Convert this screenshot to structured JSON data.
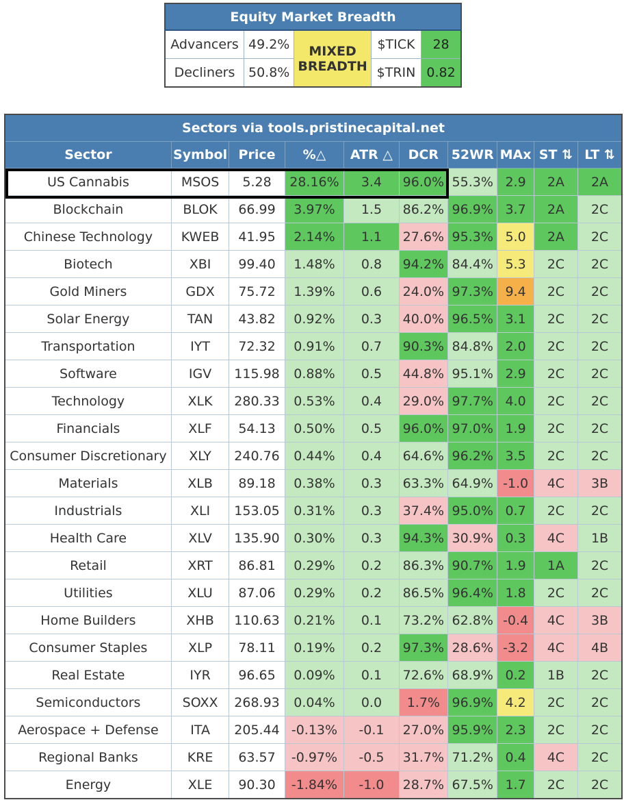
{
  "breadth": {
    "title": "Equity Market Breadth",
    "advancers_label": "Advancers",
    "advancers_value": "49.2%",
    "decliners_label": "Decliners",
    "decliners_value": "50.8%",
    "status_line1": "MIXED",
    "status_line2": "BREADTH",
    "tick_label": "$TICK",
    "tick_value": "28",
    "trin_label": "$TRIN",
    "trin_value": "0.82"
  },
  "sectors": {
    "title": "Sectors via tools.pristinecapital.net",
    "headers": [
      "Sector",
      "Symbol",
      "Price",
      "%△",
      "ATR △",
      "DCR",
      "52WR",
      "MAx",
      "ST ⇅",
      "LT ⇅"
    ],
    "rows": [
      [
        "US Cannabis",
        "MSOS",
        "5.28",
        "28.16%",
        "3.4",
        "96.0%",
        "55.3%",
        "2.9",
        "2A",
        "2A"
      ],
      [
        "Blockchain",
        "BLOK",
        "66.99",
        "3.97%",
        "1.5",
        "86.2%",
        "96.9%",
        "3.7",
        "2A",
        "2C"
      ],
      [
        "Chinese Technology",
        "KWEB",
        "41.95",
        "2.14%",
        "1.1",
        "27.6%",
        "95.3%",
        "5.0",
        "2A",
        "2C"
      ],
      [
        "Biotech",
        "XBI",
        "99.40",
        "1.48%",
        "0.8",
        "94.2%",
        "84.4%",
        "5.3",
        "2C",
        "2C"
      ],
      [
        "Gold Miners",
        "GDX",
        "75.72",
        "1.39%",
        "0.6",
        "24.0%",
        "97.3%",
        "9.4",
        "2C",
        "2C"
      ],
      [
        "Solar Energy",
        "TAN",
        "43.82",
        "0.92%",
        "0.3",
        "40.0%",
        "96.5%",
        "3.1",
        "2C",
        "2C"
      ],
      [
        "Transportation",
        "IYT",
        "72.32",
        "0.91%",
        "0.7",
        "90.3%",
        "84.8%",
        "2.0",
        "2C",
        "2C"
      ],
      [
        "Software",
        "IGV",
        "115.98",
        "0.88%",
        "0.5",
        "44.8%",
        "95.1%",
        "2.9",
        "2C",
        "2C"
      ],
      [
        "Technology",
        "XLK",
        "280.33",
        "0.53%",
        "0.4",
        "29.0%",
        "97.7%",
        "4.0",
        "2C",
        "2C"
      ],
      [
        "Financials",
        "XLF",
        "54.13",
        "0.50%",
        "0.5",
        "96.0%",
        "97.0%",
        "1.9",
        "2C",
        "2C"
      ],
      [
        "Consumer Discretionary",
        "XLY",
        "240.76",
        "0.44%",
        "0.4",
        "64.6%",
        "96.2%",
        "3.5",
        "2C",
        "2C"
      ],
      [
        "Materials",
        "XLB",
        "89.18",
        "0.38%",
        "0.3",
        "63.3%",
        "64.9%",
        "-1.0",
        "4C",
        "3B"
      ],
      [
        "Industrials",
        "XLI",
        "153.05",
        "0.31%",
        "0.3",
        "37.4%",
        "95.0%",
        "0.7",
        "2C",
        "2C"
      ],
      [
        "Health Care",
        "XLV",
        "135.90",
        "0.30%",
        "0.3",
        "94.3%",
        "30.9%",
        "0.3",
        "4C",
        "1B"
      ],
      [
        "Retail",
        "XRT",
        "86.81",
        "0.29%",
        "0.2",
        "86.3%",
        "90.7%",
        "1.9",
        "1A",
        "2C"
      ],
      [
        "Utilities",
        "XLU",
        "87.06",
        "0.29%",
        "0.2",
        "86.5%",
        "96.4%",
        "1.8",
        "2C",
        "2C"
      ],
      [
        "Home Builders",
        "XHB",
        "110.63",
        "0.21%",
        "0.1",
        "73.2%",
        "62.8%",
        "-0.4",
        "4C",
        "3B"
      ],
      [
        "Consumer Staples",
        "XLP",
        "78.11",
        "0.19%",
        "0.2",
        "97.3%",
        "28.6%",
        "-3.2",
        "4C",
        "4B"
      ],
      [
        "Real Estate",
        "IYR",
        "96.65",
        "0.09%",
        "0.1",
        "72.6%",
        "68.9%",
        "0.2",
        "1B",
        "2C"
      ],
      [
        "Semiconductors",
        "SOXX",
        "268.93",
        "0.04%",
        "0.0",
        "1.7%",
        "96.9%",
        "4.2",
        "2C",
        "2C"
      ],
      [
        "Aerospace + Defense",
        "ITA",
        "205.44",
        "-0.13%",
        "-0.1",
        "27.0%",
        "95.9%",
        "2.3",
        "2C",
        "2C"
      ],
      [
        "Regional Banks",
        "KRE",
        "63.57",
        "-0.97%",
        "-0.5",
        "31.7%",
        "71.2%",
        "0.4",
        "4C",
        "2C"
      ],
      [
        "Energy",
        "XLE",
        "90.30",
        "-1.84%",
        "-1.0",
        "28.7%",
        "67.5%",
        "1.7",
        "2C",
        "2C"
      ]
    ],
    "cell_colors": [
      [
        "w",
        "w",
        "w",
        "g2",
        "g2",
        "g2",
        "g1",
        "g2",
        "g2",
        "g2"
      ],
      [
        "w",
        "w",
        "w",
        "g2",
        "g1",
        "g1",
        "g2",
        "g2",
        "g2",
        "g1"
      ],
      [
        "w",
        "w",
        "w",
        "g2",
        "g2",
        "r1",
        "g2",
        "y1",
        "g2",
        "g1"
      ],
      [
        "w",
        "w",
        "w",
        "g1",
        "g1",
        "g2",
        "g1",
        "y1",
        "g1",
        "g1"
      ],
      [
        "w",
        "w",
        "w",
        "g1",
        "g1",
        "r1",
        "g2",
        "o1",
        "g1",
        "g1"
      ],
      [
        "w",
        "w",
        "w",
        "g1",
        "g1",
        "r1",
        "g2",
        "g2",
        "g1",
        "g1"
      ],
      [
        "w",
        "w",
        "w",
        "g1",
        "g1",
        "g2",
        "g1",
        "g2",
        "g1",
        "g1"
      ],
      [
        "w",
        "w",
        "w",
        "g1",
        "g1",
        "r1",
        "g1",
        "g2",
        "g1",
        "g1"
      ],
      [
        "w",
        "w",
        "w",
        "g1",
        "g1",
        "r1",
        "g2",
        "g2",
        "g1",
        "g1"
      ],
      [
        "w",
        "w",
        "w",
        "g1",
        "g1",
        "g2",
        "g2",
        "g2",
        "g1",
        "g1"
      ],
      [
        "w",
        "w",
        "w",
        "g1",
        "g1",
        "g1",
        "g2",
        "g2",
        "g1",
        "g1"
      ],
      [
        "w",
        "w",
        "w",
        "g1",
        "g1",
        "g1",
        "g1",
        "r2",
        "r1",
        "r1"
      ],
      [
        "w",
        "w",
        "w",
        "g1",
        "g1",
        "r1",
        "g2",
        "g2",
        "g1",
        "g1"
      ],
      [
        "w",
        "w",
        "w",
        "g1",
        "g1",
        "g2",
        "r1",
        "g2",
        "r1",
        "g1"
      ],
      [
        "w",
        "w",
        "w",
        "g1",
        "g1",
        "g1",
        "g2",
        "g2",
        "g2",
        "g1"
      ],
      [
        "w",
        "w",
        "w",
        "g1",
        "g1",
        "g1",
        "g2",
        "g2",
        "g1",
        "g1"
      ],
      [
        "w",
        "w",
        "w",
        "g1",
        "g1",
        "g1",
        "g1",
        "r2",
        "r1",
        "r1"
      ],
      [
        "w",
        "w",
        "w",
        "g1",
        "g1",
        "g2",
        "r1",
        "r2",
        "r1",
        "r1"
      ],
      [
        "w",
        "w",
        "w",
        "g1",
        "g1",
        "g1",
        "g1",
        "g2",
        "g1",
        "g1"
      ],
      [
        "w",
        "w",
        "w",
        "g1",
        "g1",
        "r2",
        "g2",
        "y1",
        "g1",
        "g1"
      ],
      [
        "w",
        "w",
        "w",
        "r1",
        "r1",
        "r1",
        "g2",
        "g2",
        "g1",
        "g1"
      ],
      [
        "w",
        "w",
        "w",
        "r1",
        "r1",
        "r1",
        "g1",
        "g2",
        "r1",
        "g1"
      ],
      [
        "w",
        "w",
        "w",
        "r2",
        "r2",
        "r1",
        "g1",
        "g2",
        "g1",
        "g1"
      ]
    ]
  }
}
